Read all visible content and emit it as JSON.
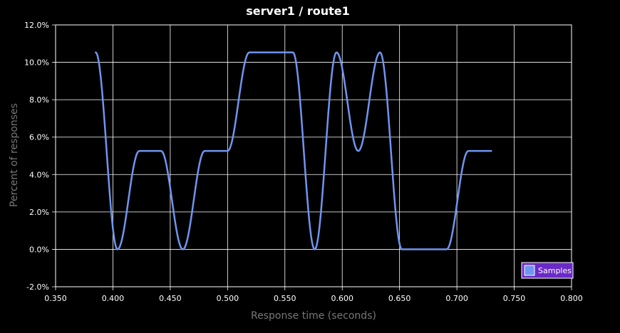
{
  "chart_data": {
    "type": "line",
    "title": "server1 / route1",
    "xlabel": "Response time (seconds)",
    "ylabel": "Percent of responses",
    "xlim": [
      0.35,
      0.8
    ],
    "ylim": [
      -2.0,
      12.0
    ],
    "xticks": [
      "0.350",
      "0.400",
      "0.450",
      "0.500",
      "0.550",
      "0.600",
      "0.650",
      "0.700",
      "0.750",
      "0.800"
    ],
    "yticks": [
      "-2.0%",
      "0.0%",
      "2.0%",
      "4.0%",
      "6.0%",
      "8.0%",
      "10.0%",
      "12.0%"
    ],
    "grid": true,
    "legend_position": "bottom-right",
    "colors": {
      "background": "#000000",
      "grid": "#ffffff",
      "series_line": "#6f95f0",
      "legend_fill": "#6a2ac7",
      "legend_swatch": "#6f95f0"
    },
    "series": [
      {
        "name": "Samples",
        "points": [
          [
            0.385,
            10.53
          ],
          [
            0.404,
            0.0
          ],
          [
            0.423,
            5.26
          ],
          [
            0.442,
            5.26
          ],
          [
            0.461,
            0.0
          ],
          [
            0.48,
            5.26
          ],
          [
            0.5,
            5.26
          ],
          [
            0.519,
            10.53
          ],
          [
            0.557,
            10.53
          ],
          [
            0.576,
            0.0
          ],
          [
            0.595,
            10.53
          ],
          [
            0.614,
            5.26
          ],
          [
            0.633,
            10.53
          ],
          [
            0.652,
            0.0
          ],
          [
            0.691,
            0.0
          ],
          [
            0.71,
            5.26
          ],
          [
            0.73,
            5.26
          ]
        ]
      }
    ]
  }
}
